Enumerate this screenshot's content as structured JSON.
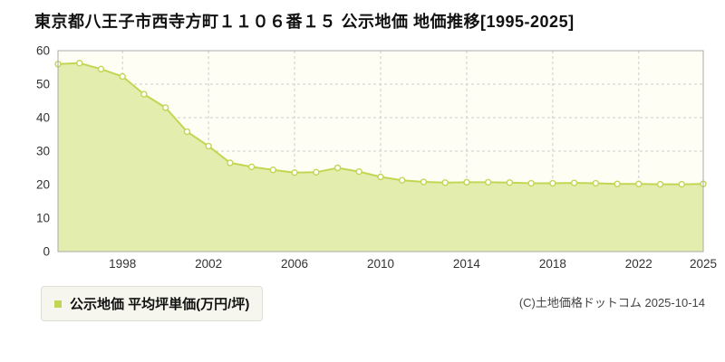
{
  "title": "東京都八王子市西寺方町１１０６番１５ 公示地価 地価推移[1995-2025]",
  "legend": {
    "label": "公示地価 平均坪単価(万円/坪)"
  },
  "footer": {
    "copyright": "(C)土地価格ドットコム 2025-10-14"
  },
  "colors": {
    "line": "#c3d653",
    "fill": "#e3eeae",
    "marker_fill": "#ffffff",
    "plot_bg": "#fffef5",
    "grid": "#cccccc",
    "axis": "#aaaaaa",
    "tick_text": "#333333"
  },
  "chart_data": {
    "type": "area",
    "title": "東京都八王子市西寺方町１１０６番１５ 公示地価 地価推移[1995-2025]",
    "xlabel": "",
    "ylabel": "",
    "legend_entries": [
      "公示地価 平均坪単価(万円/坪)"
    ],
    "legend_position": "bottom-left",
    "grid": true,
    "ylim": [
      0,
      60
    ],
    "yticks": [
      0,
      10,
      20,
      30,
      40,
      50,
      60
    ],
    "xticks": [
      1998,
      2002,
      2006,
      2010,
      2014,
      2018,
      2022,
      2025
    ],
    "x": [
      1995,
      1996,
      1997,
      1998,
      1999,
      2000,
      2001,
      2002,
      2003,
      2004,
      2005,
      2006,
      2007,
      2008,
      2009,
      2010,
      2011,
      2012,
      2013,
      2014,
      2015,
      2016,
      2017,
      2018,
      2019,
      2020,
      2021,
      2022,
      2023,
      2024,
      2025
    ],
    "values": [
      56.0,
      56.3,
      54.5,
      52.3,
      47.0,
      43.0,
      35.8,
      31.5,
      26.5,
      25.3,
      24.4,
      23.6,
      23.7,
      25.0,
      23.9,
      22.3,
      21.3,
      20.8,
      20.6,
      20.7,
      20.7,
      20.6,
      20.4,
      20.4,
      20.5,
      20.4,
      20.2,
      20.2,
      20.1,
      20.1,
      20.2
    ]
  }
}
